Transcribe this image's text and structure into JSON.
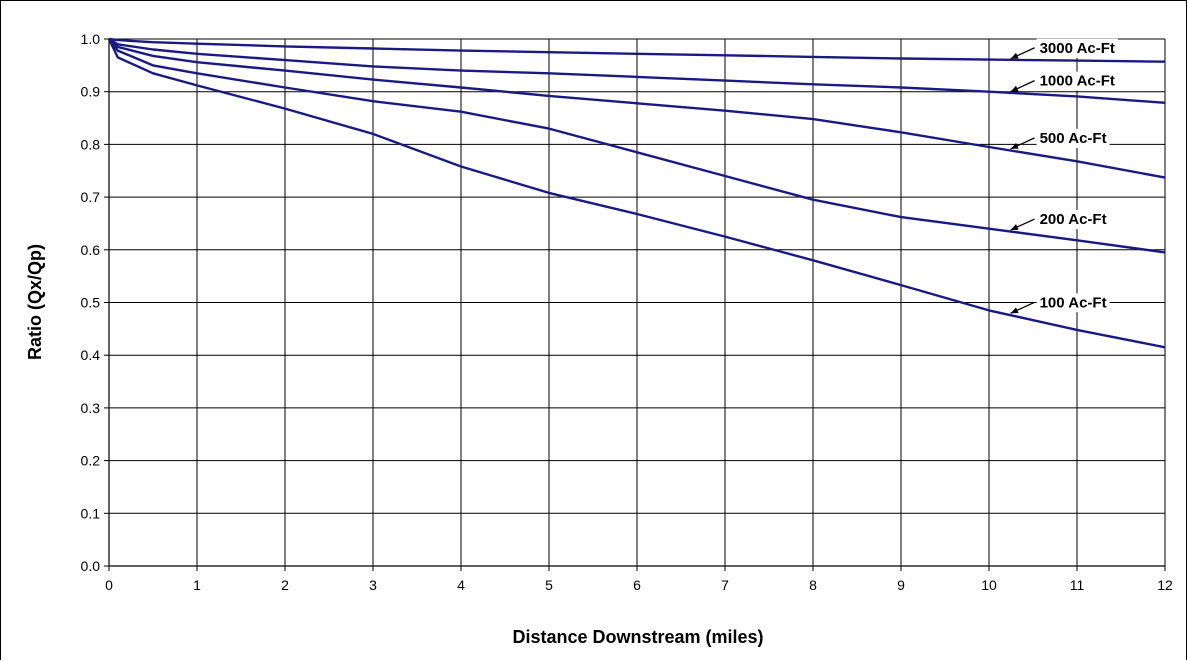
{
  "chart_data": {
    "type": "line",
    "title": "",
    "xlabel": "Distance Downstream (miles)",
    "ylabel": "Ratio (Qx/Qp)",
    "xlim": [
      0,
      12
    ],
    "ylim": [
      0,
      1.0
    ],
    "x_ticks": [
      "0",
      "1",
      "2",
      "3",
      "4",
      "5",
      "6",
      "7",
      "8",
      "9",
      "10",
      "11",
      "12"
    ],
    "y_ticks": [
      "0.0",
      "0.1",
      "0.2",
      "0.3",
      "0.4",
      "0.5",
      "0.6",
      "0.7",
      "0.8",
      "0.9",
      "1.0"
    ],
    "grid": true,
    "line_color": "#1a1a80",
    "series": [
      {
        "name": "3000 Ac-Ft",
        "x": [
          0,
          0.1,
          0.5,
          1,
          2,
          3,
          4,
          5,
          6,
          7,
          8,
          9,
          10,
          11,
          12
        ],
        "y": [
          1.0,
          0.998,
          0.994,
          0.991,
          0.986,
          0.982,
          0.978,
          0.975,
          0.972,
          0.969,
          0.966,
          0.963,
          0.961,
          0.959,
          0.957
        ]
      },
      {
        "name": "1000 Ac-Ft",
        "x": [
          0,
          0.1,
          0.5,
          1,
          2,
          3,
          4,
          5,
          6,
          7,
          8,
          9,
          10,
          11,
          12
        ],
        "y": [
          1.0,
          0.99,
          0.98,
          0.972,
          0.96,
          0.948,
          0.94,
          0.935,
          0.928,
          0.921,
          0.914,
          0.908,
          0.9,
          0.891,
          0.879
        ]
      },
      {
        "name": "500 Ac-Ft",
        "x": [
          0,
          0.1,
          0.5,
          1,
          2,
          3,
          4,
          5,
          6,
          7,
          8,
          9,
          10,
          11,
          12
        ],
        "y": [
          1.0,
          0.985,
          0.968,
          0.956,
          0.94,
          0.923,
          0.908,
          0.892,
          0.878,
          0.864,
          0.848,
          0.823,
          0.795,
          0.768,
          0.737
        ]
      },
      {
        "name": "200 Ac-Ft",
        "x": [
          0,
          0.1,
          0.5,
          1,
          2,
          3,
          4,
          5,
          6,
          7,
          8,
          9,
          10,
          11,
          12
        ],
        "y": [
          1.0,
          0.978,
          0.95,
          0.935,
          0.908,
          0.882,
          0.862,
          0.83,
          0.785,
          0.74,
          0.695,
          0.662,
          0.64,
          0.618,
          0.595
        ]
      },
      {
        "name": "100 Ac-Ft",
        "x": [
          0,
          0.1,
          0.5,
          1,
          2,
          3,
          4,
          5,
          6,
          7,
          8,
          9,
          10,
          11,
          12
        ],
        "y": [
          1.0,
          0.965,
          0.935,
          0.912,
          0.868,
          0.82,
          0.758,
          0.708,
          0.668,
          0.625,
          0.58,
          0.533,
          0.485,
          0.448,
          0.415
        ]
      }
    ],
    "annotations": [
      {
        "text": "3000 Ac-Ft",
        "series": 0,
        "x": 10.2,
        "y": 0.961
      },
      {
        "text": "1000 Ac-Ft",
        "series": 1,
        "x": 10.2,
        "y": 0.899
      },
      {
        "text": "500 Ac-Ft",
        "series": 2,
        "x": 10.2,
        "y": 0.79
      },
      {
        "text": "200 Ac-Ft",
        "series": 3,
        "x": 10.2,
        "y": 0.636
      },
      {
        "text": "100 Ac-Ft",
        "series": 4,
        "x": 10.2,
        "y": 0.482
      }
    ]
  }
}
